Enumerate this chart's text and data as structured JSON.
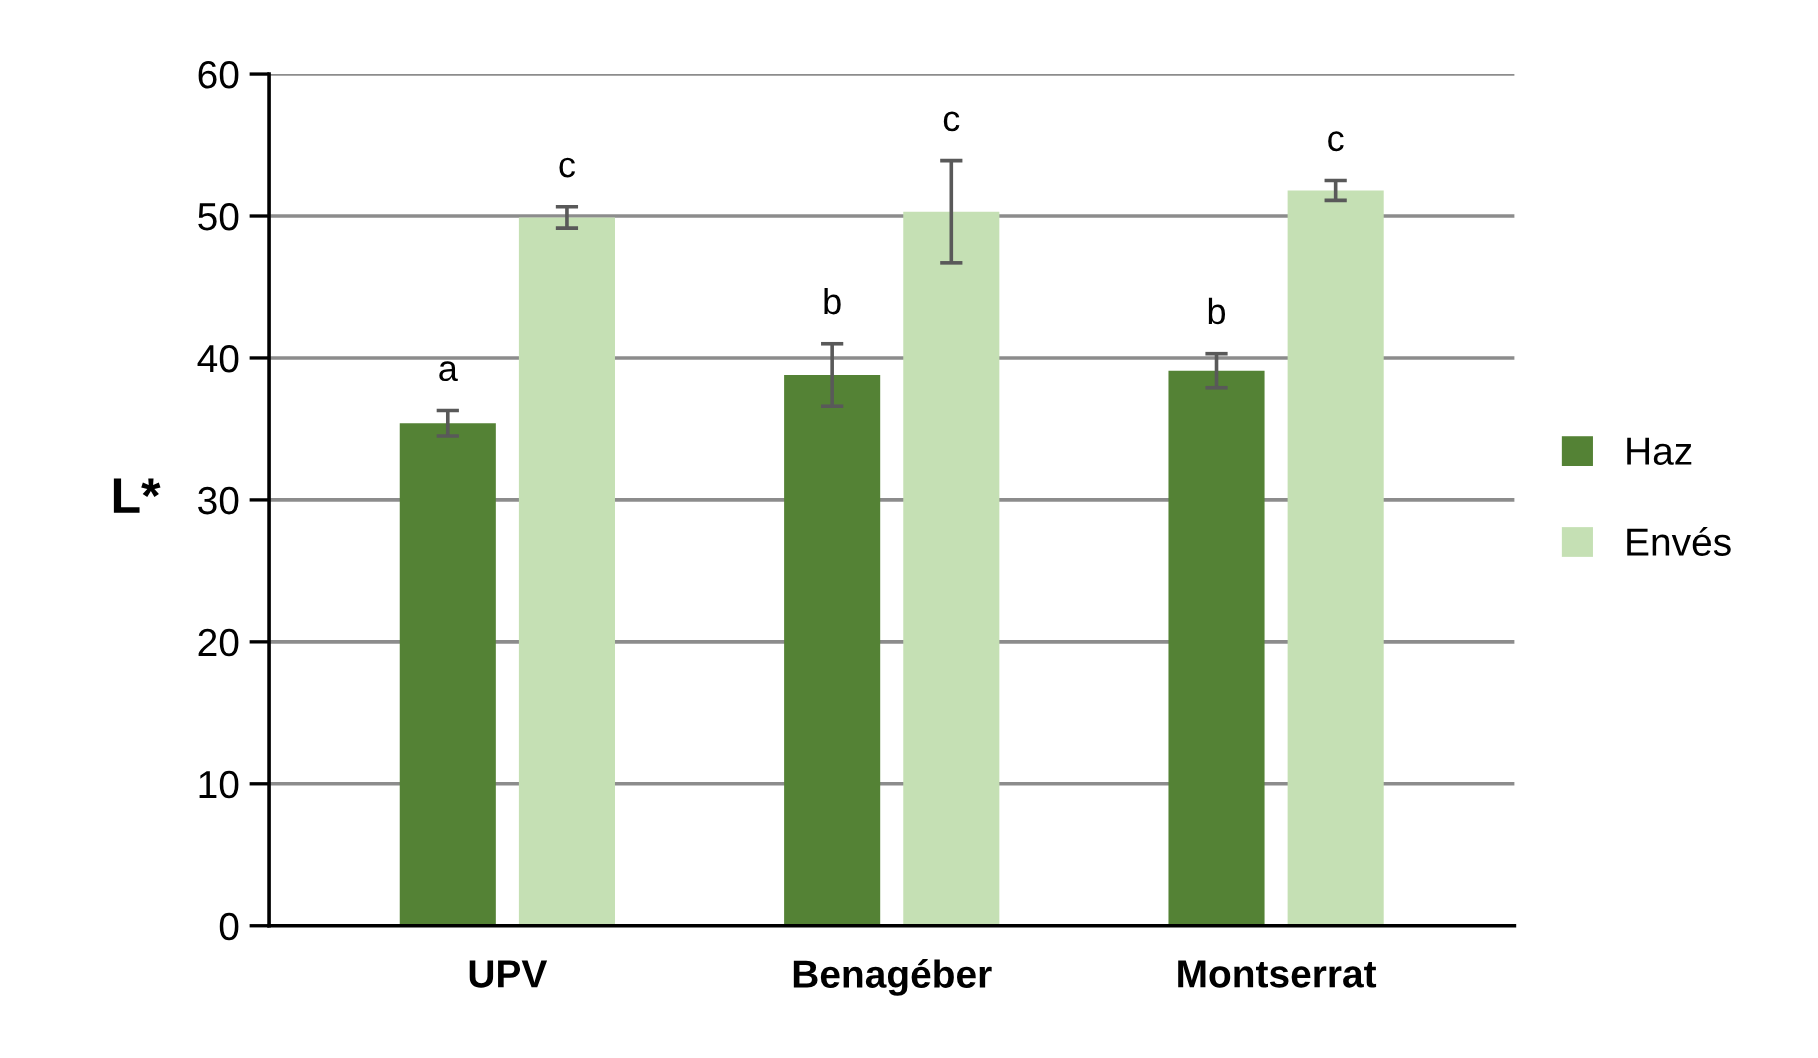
{
  "chart_data": {
    "type": "bar",
    "ylabel": "L*",
    "categories": [
      "UPV",
      "Benagéber",
      "Montserrat"
    ],
    "series": [
      {
        "name": "Haz",
        "color": "#548235",
        "values": [
          35.4,
          38.8,
          39.1
        ],
        "errors": [
          0.9,
          2.2,
          1.2
        ],
        "value_labels": [
          "a",
          "b",
          "b"
        ]
      },
      {
        "name": "Envés",
        "color": "#c5e0b4",
        "values": [
          49.9,
          50.3,
          51.8
        ],
        "errors": [
          0.75,
          3.6,
          0.7
        ],
        "value_labels": [
          "c",
          "c",
          "c"
        ]
      }
    ],
    "ylim": [
      0,
      60
    ],
    "yticks": [
      0,
      10,
      20,
      30,
      40,
      50,
      60
    ],
    "grid": "y",
    "legend": "right"
  }
}
